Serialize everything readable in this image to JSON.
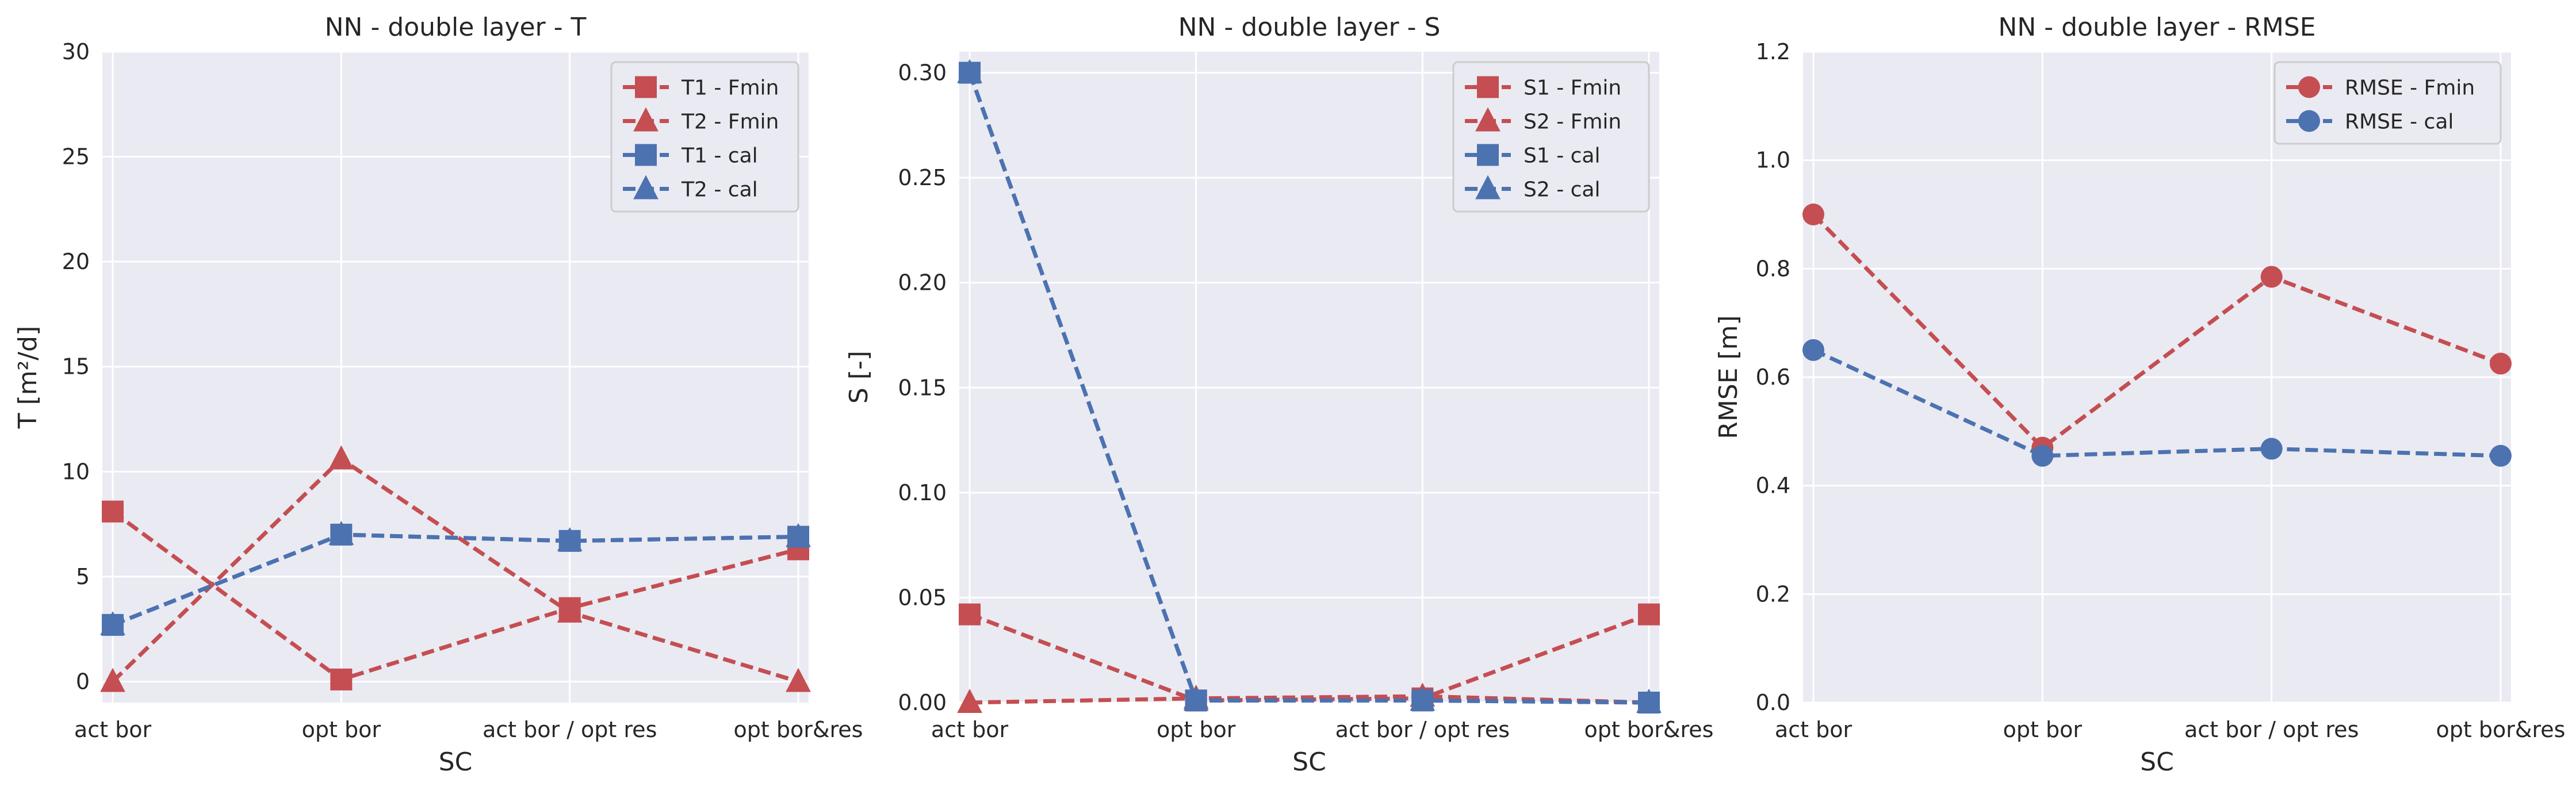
{
  "colors": {
    "red": "#c44e52",
    "blue": "#4c72b0",
    "plot_bg": "#eaeaf2",
    "grid": "#ffffff"
  },
  "chart_data": [
    {
      "type": "line",
      "title": "NN - double layer - T",
      "xlabel": "SC",
      "ylabel": "T [m²/d]",
      "categories": [
        "act bor",
        "opt bor",
        "act bor / opt res",
        "opt bor&res"
      ],
      "ylim": [
        -1,
        30
      ],
      "yticks": [
        "0",
        "5",
        "10",
        "15",
        "20",
        "25",
        "30"
      ],
      "ytick_values": [
        0,
        5,
        10,
        15,
        20,
        25,
        30
      ],
      "grid": true,
      "legend_position": "top-right",
      "series": [
        {
          "name": "T1 - Fmin",
          "color": "#c44e52",
          "marker": "square",
          "values": [
            8.1,
            0.1,
            3.5,
            6.3
          ]
        },
        {
          "name": "T2 - Fmin",
          "color": "#c44e52",
          "marker": "triangle",
          "values": [
            0.0,
            10.6,
            3.3,
            0.0
          ]
        },
        {
          "name": "T1 - cal",
          "color": "#4c72b0",
          "marker": "square",
          "values": [
            2.7,
            7.0,
            6.7,
            6.9
          ]
        },
        {
          "name": "T2 - cal",
          "color": "#4c72b0",
          "marker": "triangle",
          "values": [
            2.7,
            7.0,
            6.7,
            6.9
          ]
        }
      ]
    },
    {
      "type": "line",
      "title": "NN - double layer - S",
      "xlabel": "SC",
      "ylabel": "S [-]",
      "categories": [
        "act bor",
        "opt bor",
        "act bor / opt res",
        "opt bor&res"
      ],
      "ylim": [
        0,
        0.31
      ],
      "yticks": [
        "0.00",
        "0.05",
        "0.10",
        "0.15",
        "0.20",
        "0.25",
        "0.30"
      ],
      "ytick_values": [
        0,
        0.05,
        0.1,
        0.15,
        0.2,
        0.25,
        0.3
      ],
      "grid": true,
      "legend_position": "top-right",
      "series": [
        {
          "name": "S1 - Fmin",
          "color": "#c44e52",
          "marker": "square",
          "values": [
            0.042,
            0.001,
            0.002,
            0.042
          ]
        },
        {
          "name": "S2 - Fmin",
          "color": "#c44e52",
          "marker": "triangle",
          "values": [
            0.0,
            0.002,
            0.003,
            0.0
          ]
        },
        {
          "name": "S1 - cal",
          "color": "#4c72b0",
          "marker": "square",
          "values": [
            0.3,
            0.001,
            0.001,
            0.0
          ]
        },
        {
          "name": "S2 - cal",
          "color": "#4c72b0",
          "marker": "triangle",
          "values": [
            0.3,
            0.001,
            0.001,
            0.0
          ]
        }
      ]
    },
    {
      "type": "line",
      "title": "NN - double layer - RMSE",
      "xlabel": "SC",
      "ylabel": "RMSE [m]",
      "categories": [
        "act bor",
        "opt bor",
        "act bor / opt res",
        "opt bor&res"
      ],
      "ylim": [
        0,
        1.2
      ],
      "yticks": [
        "0.0",
        "0.2",
        "0.4",
        "0.6",
        "0.8",
        "1.0",
        "1.2"
      ],
      "ytick_values": [
        0,
        0.2,
        0.4,
        0.6,
        0.8,
        1.0,
        1.2
      ],
      "grid": true,
      "legend_position": "top-right",
      "series": [
        {
          "name": "RMSE - Fmin",
          "color": "#c44e52",
          "marker": "circle",
          "values": [
            0.9,
            0.47,
            0.785,
            0.625
          ]
        },
        {
          "name": "RMSE - cal",
          "color": "#4c72b0",
          "marker": "circle",
          "values": [
            0.65,
            0.455,
            0.468,
            0.455
          ]
        }
      ]
    }
  ]
}
